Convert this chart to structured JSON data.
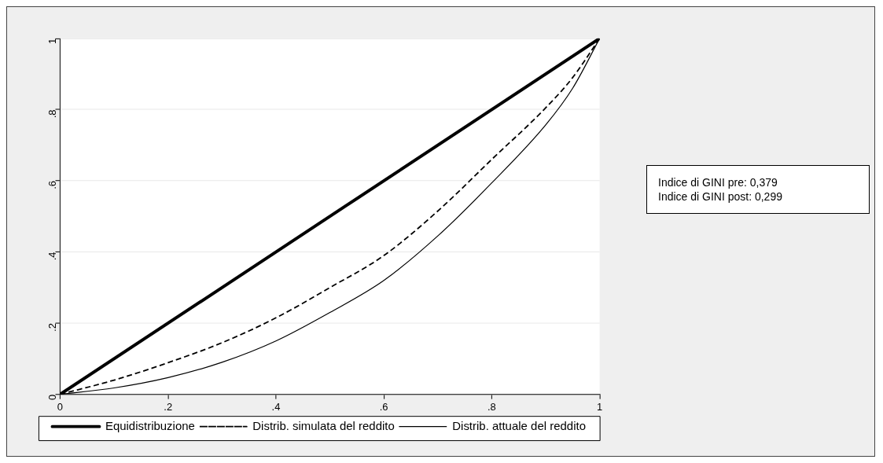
{
  "chart_data": {
    "type": "line",
    "x": [
      0,
      0.1,
      0.2,
      0.3,
      0.4,
      0.5,
      0.6,
      0.7,
      0.8,
      0.9,
      0.95,
      1
    ],
    "series": [
      {
        "name": "Equidistribuzione",
        "color": "#000000",
        "x": [
          0,
          1
        ],
        "values": [
          0,
          1
        ]
      },
      {
        "name": "Distrib. simulata del reddito",
        "color": "#000000",
        "line_style": "dashed",
        "values": [
          0,
          0.04,
          0.089,
          0.145,
          0.215,
          0.3,
          0.39,
          0.515,
          0.66,
          0.805,
          0.89,
          1
        ]
      },
      {
        "name": "Distrib. attuale del reddito",
        "color": "#000000",
        "values": [
          0,
          0.018,
          0.047,
          0.09,
          0.15,
          0.23,
          0.32,
          0.445,
          0.594,
          0.757,
          0.86,
          1
        ]
      }
    ],
    "xlim": [
      0,
      1
    ],
    "ylim": [
      0,
      1
    ],
    "xticks": [
      0,
      {
        "value": 0.2,
        "label": ".2"
      },
      {
        "value": 0.4,
        "label": ".4"
      },
      {
        "value": 0.6,
        "label": ".6"
      },
      {
        "value": 0.8,
        "label": ".8"
      },
      1
    ],
    "yticks": [
      0,
      {
        "value": 0.2,
        "label": ".2"
      },
      {
        "value": 0.4,
        "label": ".4"
      },
      {
        "value": 0.6,
        "label": ".6"
      },
      {
        "value": 0.8,
        "label": ".8"
      },
      1
    ],
    "grid": "y",
    "legend": "bottom",
    "marker": "none",
    "line_style": "solid",
    "annotations": [
      "Indice di GINI pre: 0,379\nIndice di GINI post: 0,299"
    ]
  }
}
